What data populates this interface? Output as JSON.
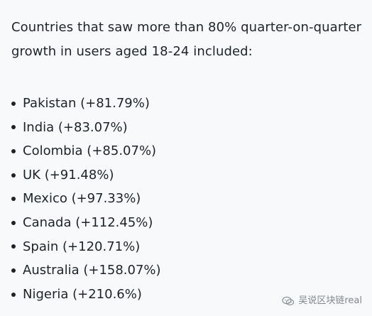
{
  "document": {
    "intro": "Countries that saw more than 80% quarter-on-quarter growth in users aged 18-24 included:",
    "countries": [
      {
        "label": "Pakistan (+81.79%)"
      },
      {
        "label": "India (+83.07%)"
      },
      {
        "label": "Colombia (+85.07%)"
      },
      {
        "label": "UK (+91.48%)"
      },
      {
        "label": "Mexico (+97.33%)"
      },
      {
        "label": "Canada (+112.45%)"
      },
      {
        "label": "Spain (+120.71%)"
      },
      {
        "label": "Australia (+158.07%)"
      },
      {
        "label": "Nigeria (+210.6%)"
      }
    ]
  },
  "watermark": {
    "text": "吴说区块链real",
    "icon": "wechat-icon"
  }
}
